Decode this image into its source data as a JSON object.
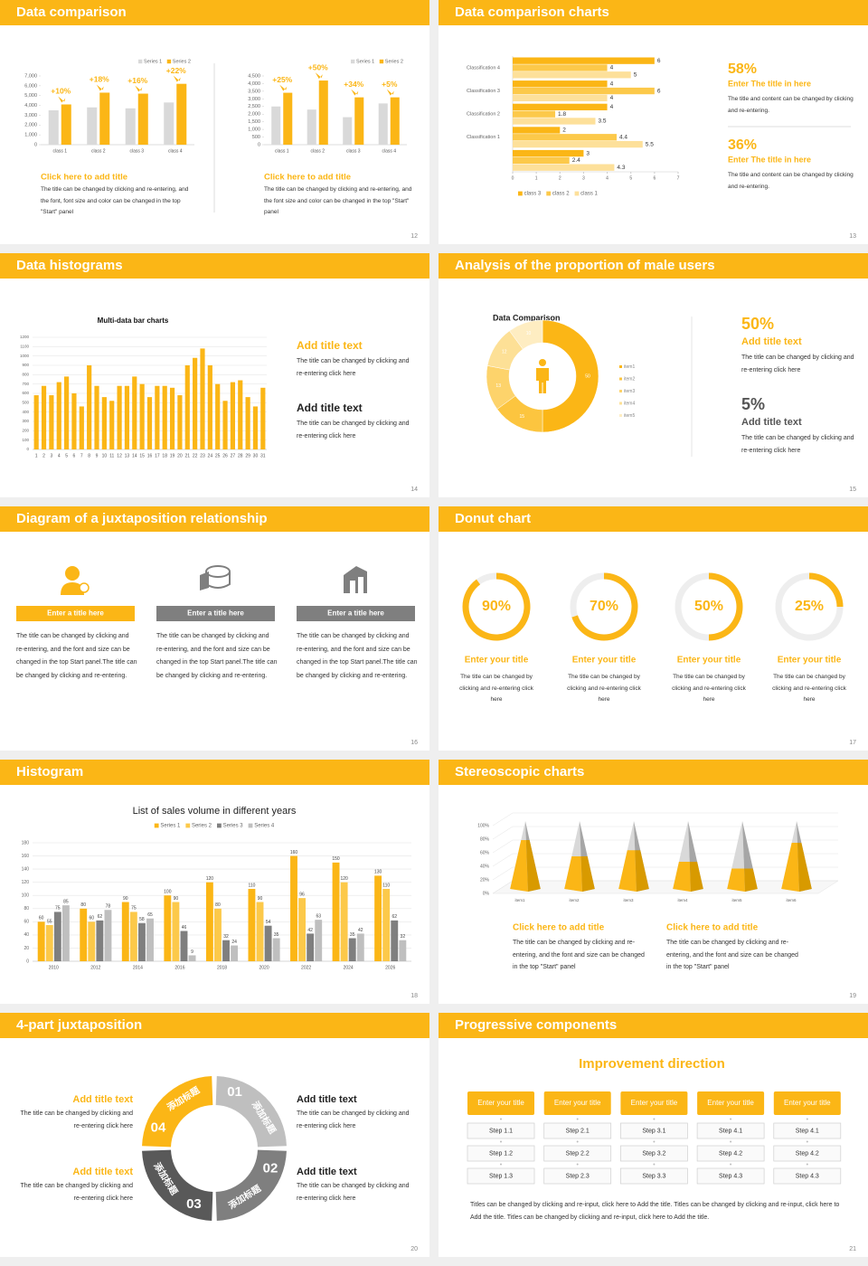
{
  "slides": [
    {
      "header": "Data comparison",
      "page": "12",
      "charts": [
        {
          "type": "bar",
          "categories": [
            "class 1",
            "class 2",
            "class 3",
            "class 4"
          ],
          "series": [
            {
              "name": "Series 1",
              "color": "#d9d9d9",
              "values": [
                3500,
                3800,
                3700,
                4300
              ]
            },
            {
              "name": "Series 2",
              "color": "#fbb616",
              "values": [
                4100,
                5300,
                5200,
                6200
              ]
            }
          ],
          "ylim": [
            0,
            7000
          ],
          "yticks": [
            0,
            {
              "value": 1000,
              "label": "1,000"
            },
            {
              "value": 2000,
              "label": "2,000"
            },
            {
              "value": 3000,
              "label": "3,000"
            },
            {
              "value": 4000,
              "label": "4,000"
            },
            {
              "value": 5000,
              "label": "5,000"
            },
            {
              "value": 6000,
              "label": "6,000"
            },
            {
              "value": 7000,
              "label": "7,000"
            }
          ],
          "grid": false,
          "annotations": [
            "+10%",
            "+18%",
            "+16%",
            "+22%"
          ],
          "caption_title": "Click here to add title",
          "caption_text": "The title can be changed by clicking and re-entering, and the font, font size and color can be changed in the top \"Start\" panel"
        },
        {
          "type": "bar",
          "categories": [
            "class 1",
            "class 2",
            "class 3",
            "class 4"
          ],
          "series": [
            {
              "name": "Series 1",
              "color": "#d9d9d9",
              "values": [
                2500,
                2300,
                1800,
                2700
              ]
            },
            {
              "name": "Series 2",
              "color": "#fbb616",
              "values": [
                3400,
                4200,
                3100,
                3100
              ]
            }
          ],
          "ylim": [
            0,
            4500
          ],
          "yticks": [
            0,
            500,
            {
              "value": 1000,
              "label": "1,000"
            },
            {
              "value": 1500,
              "label": "1,500"
            },
            {
              "value": 2000,
              "label": "2,000"
            },
            {
              "value": 2500,
              "label": "2,500"
            },
            {
              "value": 3000,
              "label": "3,000"
            },
            {
              "value": 3500,
              "label": "3,500"
            },
            {
              "value": 4000,
              "label": "4,000"
            },
            {
              "value": 4500,
              "label": "4,500"
            }
          ],
          "grid": false,
          "annotations": [
            "+25%",
            "+50%",
            "+34%",
            "+5%"
          ],
          "caption_title": "Click here to add title",
          "caption_text": "The title can be changed by clicking and re-entering, and the font size and color can be changed in the top \"Start\" panel"
        }
      ]
    },
    {
      "header": "Data comparison charts",
      "page": "13",
      "chart": {
        "type": "bar",
        "categories": [
          "Classification 4",
          "Classification 3",
          "Classification 2",
          "Classification 1",
          null
        ],
        "series": [
          {
            "name": "class 3",
            "color": "#fbb616",
            "values": [
              6,
              4,
              4,
              2,
              3
            ]
          },
          {
            "name": "class 2",
            "color": "#fcc94a",
            "values": [
              4,
              6,
              1.8,
              4.4,
              2.4
            ]
          },
          {
            "name": "class 1",
            "color": "#fde09a",
            "values": [
              5,
              4,
              3.5,
              5.5,
              4.3
            ]
          }
        ],
        "xlim": [
          0,
          7
        ],
        "xticks": [
          0,
          1,
          2,
          3,
          4,
          5,
          6,
          7
        ]
      },
      "stats": [
        {
          "value": "58%",
          "title": "Enter The title in here",
          "text": "The title and content can be changed by clicking and re-entering."
        },
        {
          "value": "36%",
          "title": "Enter The title in here",
          "text": "The title and content can be changed by clicking and re-entering."
        }
      ]
    },
    {
      "header": "Data histograms",
      "page": "14",
      "chart": {
        "type": "bar",
        "title": "Multi-data bar charts",
        "categories": [
          "1",
          "2",
          "3",
          "4",
          "5",
          "6",
          "7",
          "8",
          "9",
          "10",
          "11",
          "12",
          "13",
          "14",
          "15",
          "16",
          "17",
          "18",
          "19",
          "20",
          "21",
          "22",
          "23",
          "24",
          "25",
          "26",
          "27",
          "28",
          "29",
          "30",
          "31"
        ],
        "series": [
          {
            "color": "#fbb616",
            "values": [
              580,
              680,
              580,
              720,
              780,
              600,
              460,
              900,
              680,
              560,
              520,
              680,
              680,
              780,
              700,
              560,
              680,
              680,
              660,
              580,
              900,
              980,
              1080,
              900,
              700,
              520,
              720,
              740,
              560,
              460,
              660
            ]
          }
        ],
        "ylim": [
          0,
          1200
        ],
        "yticks": [
          0,
          100,
          200,
          300,
          400,
          500,
          600,
          700,
          800,
          900,
          1000,
          1100,
          1200
        ],
        "grid": true
      },
      "items": [
        {
          "title": "Add title text",
          "text": "The title can be changed by clicking and re-entering click here"
        },
        {
          "title": "Add title text",
          "text": "The title can be changed by clicking and re-entering click here"
        }
      ]
    },
    {
      "header": "Analysis of the proportion of male users",
      "page": "15",
      "chart": {
        "type": "pie",
        "title": "Data Comparison",
        "categories": [
          "item1",
          "item2",
          "item3",
          "item4",
          "item5"
        ],
        "values": [
          50,
          15,
          13,
          12,
          10
        ],
        "colors": [
          "#fbb616",
          "#fcc53f",
          "#fdd36b",
          "#fde096",
          "#feedc2"
        ]
      },
      "stats": [
        {
          "value": "50%",
          "title": "Add title text",
          "text": "The title can be changed by clicking and re-entering click here"
        },
        {
          "value": "5%",
          "title": "Add title text",
          "text": "The title can be changed by clicking and re-entering click here"
        }
      ]
    },
    {
      "header": "Diagram of a juxtaposition relationship",
      "page": "16",
      "columns": [
        {
          "title": "Enter a title here",
          "text": "The title can be changed by clicking and re-entering, and the font and size can be changed in the top Start panel.The title can be changed by clicking and re-entering."
        },
        {
          "title": "Enter a title here",
          "text": "The title can be changed by clicking and re-entering, and the font and size can be changed in the top Start panel.The title can be changed by clicking and re-entering."
        },
        {
          "title": "Enter a title here",
          "text": "The title can be changed by clicking and re-entering, and the font and size can be changed in the top Start panel.The title can be changed by clicking and re-entering."
        }
      ]
    },
    {
      "header": "Donut chart",
      "page": "17",
      "chart": {
        "type": "donut",
        "values": [
          90,
          70,
          50,
          25
        ],
        "value_labels": [
          "90%",
          "70%",
          "50%",
          "25%"
        ],
        "color": "#fbb616"
      },
      "items": [
        {
          "title": "Enter your title",
          "text": "The title can be changed by clicking and re-entering click here"
        },
        {
          "title": "Enter your title",
          "text": "The title can be changed by clicking and re-entering click here"
        },
        {
          "title": "Enter your title",
          "text": "The title can be changed by clicking and re-entering click here"
        },
        {
          "title": "Enter your title",
          "text": "The title can be changed by clicking and re-entering click here"
        }
      ]
    },
    {
      "header": "Histogram",
      "page": "18",
      "chart": {
        "type": "bar",
        "title": "List of sales volume in different years",
        "categories": [
          "2010",
          "2012",
          "2014",
          "2016",
          "2018",
          "2020",
          "2022",
          "2024",
          "2026"
        ],
        "series": [
          {
            "name": "Series 1",
            "color": "#fbb616",
            "values": [
              60,
              80,
              90,
              100,
              120,
              110,
              160,
              150,
              130
            ]
          },
          {
            "name": "Series 2",
            "color": "#fcc94a",
            "values": [
              55,
              60,
              75,
              90,
              80,
              90,
              96,
              120,
              110
            ]
          },
          {
            "name": "Series 3",
            "color": "#7f7f7f",
            "values": [
              75,
              62,
              58,
              46,
              32,
              54,
              42,
              35,
              62
            ]
          },
          {
            "name": "Series 4",
            "color": "#bfbfbf",
            "values": [
              85,
              78,
              65,
              9,
              24,
              35,
              63,
              42,
              32
            ]
          }
        ],
        "ylim": [
          0,
          180
        ],
        "yticks": [
          0,
          20,
          40,
          60,
          80,
          100,
          120,
          140,
          160,
          180
        ],
        "grid": true
      }
    },
    {
      "header": "Stereoscopic charts",
      "page": "19",
      "chart": {
        "type": "bar",
        "categories": [
          "item1",
          "item2",
          "item3",
          "item4",
          "item5",
          "item6"
        ],
        "values": [
          72,
          48,
          57,
          40,
          30,
          68
        ],
        "color": "#fbb616",
        "ylim": [
          0,
          100
        ],
        "yticks": [
          {
            "value": 0,
            "label": "0%"
          },
          {
            "value": 20,
            "label": "20%"
          },
          {
            "value": 40,
            "label": "40%"
          },
          {
            "value": 60,
            "label": "60%"
          },
          {
            "value": 80,
            "label": "80%"
          },
          {
            "value": 100,
            "label": "100%"
          }
        ]
      },
      "items": [
        {
          "title": "Click here to add title",
          "text": "The title can be changed by clicking and re-entering, and the font and size can be changed in the top \"Start\" panel"
        },
        {
          "title": "Click here to add title",
          "text": "The title can be changed by clicking and re-entering, and the font and size can be changed in the top \"Start\" panel"
        }
      ]
    },
    {
      "header": "4-part juxtaposition",
      "page": "20",
      "segments": [
        {
          "number": "01",
          "label": "添加标题"
        },
        {
          "number": "02",
          "label": "添加标题"
        },
        {
          "number": "03",
          "label": "添加标题"
        },
        {
          "number": "04",
          "label": "添加标题"
        }
      ],
      "items": [
        {
          "title": "Add title text",
          "text": "The title can be changed by clicking and re-entering click here"
        },
        {
          "title": "Add title text",
          "text": "The title can be changed by clicking and re-entering click here"
        },
        {
          "title": "Add title text",
          "text": "The title can be changed by clicking and re-entering click here"
        },
        {
          "title": "Add title text",
          "text": "The title can be changed by clicking and re-entering click here"
        }
      ]
    },
    {
      "header": "Progressive components",
      "page": "21",
      "title": "Improvement direction",
      "columns": [
        {
          "title": "Enter your title",
          "steps": [
            "Step 1.1",
            "Step 1.2",
            "Step 1.3"
          ]
        },
        {
          "title": "Enter your title",
          "steps": [
            "Step 2.1",
            "Step 2.2",
            "Step 2.3"
          ]
        },
        {
          "title": "Enter your title",
          "steps": [
            "Step 3.1",
            "Step 3.2",
            "Step 3.3"
          ]
        },
        {
          "title": "Enter your title",
          "steps": [
            "Step 4.1",
            "Step 4.2",
            "Step 4.3"
          ]
        },
        {
          "title": "Enter your title",
          "steps": [
            "Step 4.1",
            "Step 4.2",
            "Step 4.3"
          ]
        }
      ],
      "footer": "Titles can be changed by clicking and re-input, click here to Add the title. Titles can be changed by clicking and re-input, click here to Add the title. Titles can be changed by clicking and re-input, click here to Add the title."
    }
  ]
}
